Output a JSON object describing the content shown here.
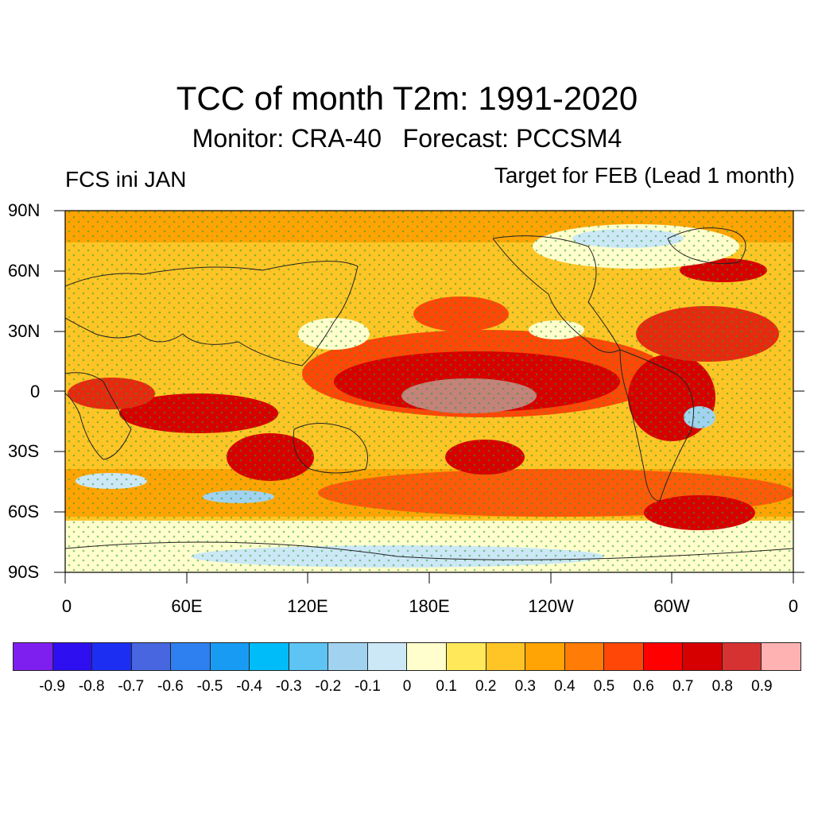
{
  "title": "TCC of month T2m: 1991-2020",
  "subtitle": "Monitor: CRA-40   Forecast: PCCSM4",
  "left_label": "FCS ini JAN",
  "right_label": "Target for FEB (Lead 1 month)",
  "y_ticks": [
    "90N",
    "60N",
    "30N",
    "0",
    "30S",
    "60S",
    "90S"
  ],
  "x_ticks": [
    "0",
    "60E",
    "120E",
    "180E",
    "120W",
    "60W",
    "0"
  ],
  "colorbar": {
    "colors": [
      "#7f1fef",
      "#2d0ff0",
      "#1c2ef2",
      "#4766e0",
      "#2e7ff0",
      "#189cf3",
      "#00bcf8",
      "#5dc4f4",
      "#a1d3f0",
      "#cce8f7",
      "#fffecc",
      "#ffe95a",
      "#ffc526",
      "#ffa404",
      "#ff7c06",
      "#ff4708",
      "#fe0000",
      "#d70000",
      "#d63232",
      "#ffb2b2"
    ],
    "labels": [
      "-0.9",
      "-0.8",
      "-0.7",
      "-0.6",
      "-0.5",
      "-0.4",
      "-0.3",
      "-0.2",
      "-0.1",
      "0",
      "0.1",
      "0.2",
      "0.3",
      "0.4",
      "0.5",
      "0.6",
      "0.7",
      "0.8",
      "0.9"
    ]
  },
  "map_regions": [
    {
      "name": "equatorial-pacific-high",
      "color": "#d70000"
    },
    {
      "name": "central-pacific-core",
      "color": "#c4827a"
    },
    {
      "name": "south-america-tropics",
      "color": "#d70000"
    },
    {
      "name": "north-atlantic-warm",
      "color": "#e52a10"
    },
    {
      "name": "southern-ocean-band",
      "color": "#fe5a0a"
    }
  ]
}
